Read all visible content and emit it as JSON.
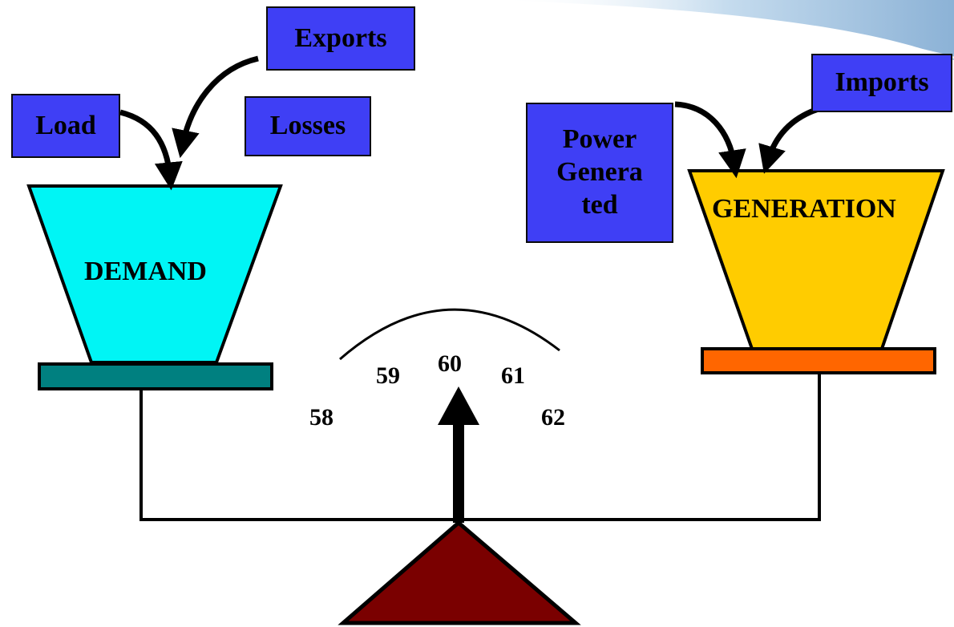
{
  "labels": {
    "exports": "Exports",
    "load": "Load",
    "losses": "Losses",
    "imports": "Imports",
    "power_generated": [
      "Power",
      "Genera",
      "ted"
    ]
  },
  "bins": {
    "demand": "DEMAND",
    "generation": "GENERATION"
  },
  "gauge": {
    "ticks": [
      "58",
      "59",
      "60",
      "61",
      "62"
    ]
  },
  "colors": {
    "label_box": "#3f3ff5",
    "demand_bin": "#00f5f5",
    "demand_plate": "#008080",
    "generation_bin": "#ffcc00",
    "generation_plate": "#ff6600",
    "fulcrum": "#7a0000"
  }
}
